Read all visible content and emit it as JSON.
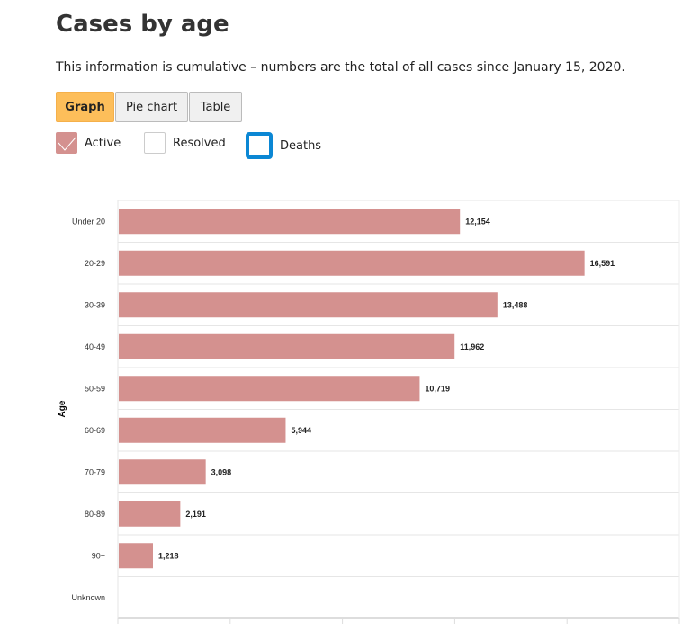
{
  "title": "Cases by age",
  "description": "This information is cumulative – numbers are the total of all cases since January 15, 2020.",
  "tabs": [
    {
      "label": "Graph",
      "active": true
    },
    {
      "label": "Pie chart"
    },
    {
      "label": "Table"
    }
  ],
  "legend": [
    {
      "label": "Active",
      "checked": true,
      "color": "#d4918f"
    },
    {
      "label": "Resolved",
      "checked": false
    },
    {
      "label": "Deaths",
      "checked": false,
      "focused": true,
      "color": "#0b87d4"
    }
  ],
  "chart_data": {
    "type": "bar",
    "orientation": "horizontal",
    "ylabel": "Age",
    "xlabel": "",
    "categories": [
      "Under 20",
      "20-29",
      "30-39",
      "40-49",
      "50-59",
      "60-69",
      "70-79",
      "80-89",
      "90+",
      "Unknown"
    ],
    "series": [
      {
        "name": "Active",
        "color": "#d4918f",
        "values": [
          12154,
          16591,
          13488,
          11962,
          10719,
          5944,
          3098,
          2191,
          1218,
          0
        ]
      }
    ],
    "labels": [
      "12,154",
      "16,591",
      "13,488",
      "11,962",
      "10,719",
      "5,944",
      "3,098",
      "2,191",
      "1,218",
      ""
    ],
    "xlim": [
      0,
      20000
    ],
    "grid": true
  }
}
